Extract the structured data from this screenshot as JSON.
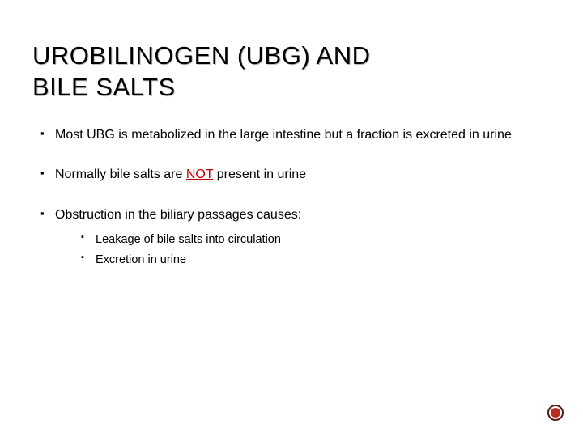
{
  "title": "UROBILINOGEN (UBG) AND\nBILE SALTS",
  "title_font_size_pt": 31,
  "title_color": "#000000",
  "title_shadow_color": "#bfbfbf",
  "body_font_size_pt": 16,
  "sub_font_size_pt": 14.5,
  "not_color": "#c00000",
  "bullets": [
    {
      "text": "Most UBG is metabolized in the large intestine but a fraction is excreted in urine"
    },
    {
      "prefix": "Normally bile salts are ",
      "not": "NOT",
      "suffix": " present in urine"
    },
    {
      "text": "Obstruction in the biliary passages causes:",
      "sub": [
        "Leakage of bile salts into circulation",
        "Excretion in urine"
      ]
    }
  ],
  "decor": {
    "outer_ring_color": "#5a1a12",
    "inner_fill_color": "#b92d1f"
  }
}
